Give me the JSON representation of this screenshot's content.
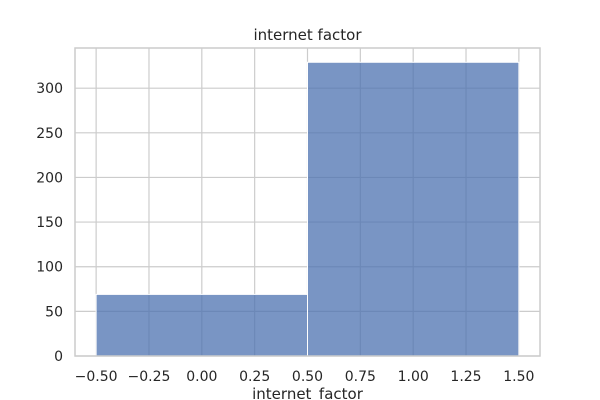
{
  "chart_data": {
    "type": "bar",
    "title": "internet factor",
    "xlabel": "internet_factor",
    "ylabel": "",
    "bins": [
      {
        "x_start": -0.5,
        "x_end": 0.5,
        "value": 69
      },
      {
        "x_start": 0.5,
        "x_end": 1.5,
        "value": 329
      }
    ],
    "xlim": [
      -0.6,
      1.6
    ],
    "ylim": [
      0,
      345
    ],
    "x_ticks": [
      -0.5,
      -0.25,
      0.0,
      0.25,
      0.5,
      0.75,
      1.0,
      1.25,
      1.5
    ],
    "x_tick_labels": [
      "−0.50",
      "−0.25",
      "0.00",
      "0.25",
      "0.50",
      "0.75",
      "1.00",
      "1.25",
      "1.50"
    ],
    "y_ticks": [
      0,
      50,
      100,
      150,
      200,
      250,
      300
    ],
    "y_tick_labels": [
      "0",
      "50",
      "100",
      "150",
      "200",
      "250",
      "300"
    ],
    "grid": true,
    "colors": {
      "bar_fill": "#4c72b0",
      "bar_edge": "#ffffff",
      "grid": "#cccccc",
      "frame": "#cccccc",
      "text": "#262626"
    }
  }
}
